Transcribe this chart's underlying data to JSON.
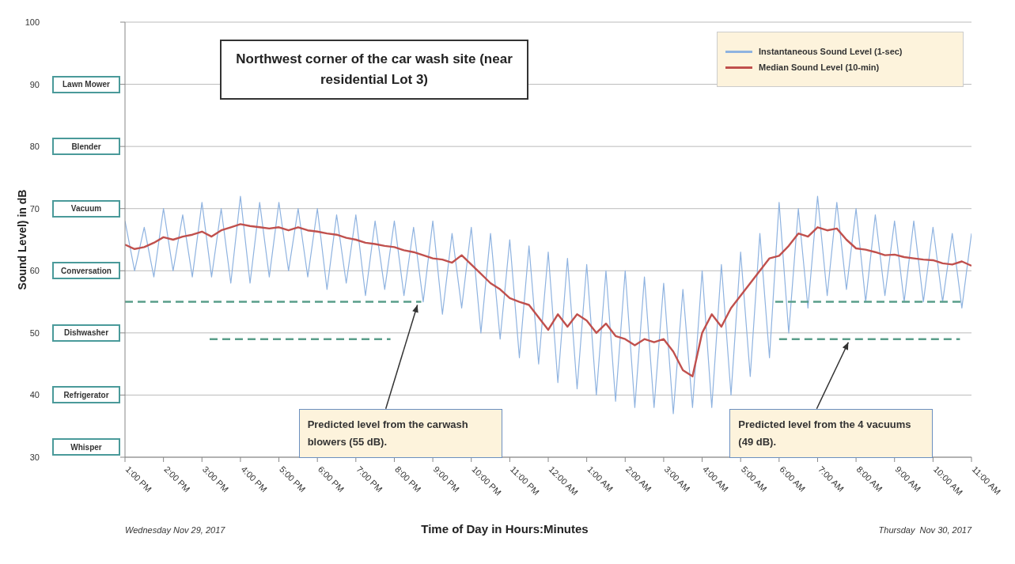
{
  "chart_data": {
    "type": "line",
    "title": "Northwest corner of the car wash site (near residential Lot 3)",
    "xlabel": "Time of Day in Hours:Minutes",
    "ylabel": "Sound Level) in dB",
    "xlim": [
      "2017-11-29T13:00",
      "2017-11-30T11:00"
    ],
    "xticks": [
      {
        "value": "2017-11-29T13:00",
        "label": "1:00 PM"
      },
      {
        "value": "2017-11-29T14:00",
        "label": "2:00 PM"
      },
      {
        "value": "2017-11-29T15:00",
        "label": "3:00 PM"
      },
      {
        "value": "2017-11-29T16:00",
        "label": "4:00 PM"
      },
      {
        "value": "2017-11-29T17:00",
        "label": "5:00 PM"
      },
      {
        "value": "2017-11-29T18:00",
        "label": "6:00 PM"
      },
      {
        "value": "2017-11-29T19:00",
        "label": "7:00 PM"
      },
      {
        "value": "2017-11-29T20:00",
        "label": "8:00 PM"
      },
      {
        "value": "2017-11-29T21:00",
        "label": "9:00 PM"
      },
      {
        "value": "2017-11-29T22:00",
        "label": "10:00 PM"
      },
      {
        "value": "2017-11-29T23:00",
        "label": "11:00 PM"
      },
      {
        "value": "2017-11-30T00:00",
        "label": "12:00 AM"
      },
      {
        "value": "2017-11-30T01:00",
        "label": "1:00 AM"
      },
      {
        "value": "2017-11-30T02:00",
        "label": "2:00 AM"
      },
      {
        "value": "2017-11-30T03:00",
        "label": "3:00 AM"
      },
      {
        "value": "2017-11-30T04:00",
        "label": "4:00 AM"
      },
      {
        "value": "2017-11-30T05:00",
        "label": "5:00 AM"
      },
      {
        "value": "2017-11-30T06:00",
        "label": "6:00 AM"
      },
      {
        "value": "2017-11-30T07:00",
        "label": "7:00 AM"
      },
      {
        "value": "2017-11-30T08:00",
        "label": "8:00 AM"
      },
      {
        "value": "2017-11-30T09:00",
        "label": "9:00 AM"
      },
      {
        "value": "2017-11-30T10:00",
        "label": "10:00 AM"
      },
      {
        "value": "2017-11-30T11:00",
        "label": "11:00 AM"
      }
    ],
    "ylim": [
      30,
      100
    ],
    "yticks": [
      30,
      40,
      50,
      60,
      70,
      80,
      90,
      100
    ],
    "grid": "y",
    "legend": "top right",
    "x": [
      "2017-11-29T13:00",
      "2017-11-29T13:15",
      "2017-11-29T13:30",
      "2017-11-29T13:45",
      "2017-11-29T14:00",
      "2017-11-29T14:15",
      "2017-11-29T14:30",
      "2017-11-29T14:45",
      "2017-11-29T15:00",
      "2017-11-29T15:15",
      "2017-11-29T15:30",
      "2017-11-29T15:45",
      "2017-11-29T16:00",
      "2017-11-29T16:15",
      "2017-11-29T16:30",
      "2017-11-29T16:45",
      "2017-11-29T17:00",
      "2017-11-29T17:15",
      "2017-11-29T17:30",
      "2017-11-29T17:45",
      "2017-11-29T18:00",
      "2017-11-29T18:15",
      "2017-11-29T18:30",
      "2017-11-29T18:45",
      "2017-11-29T19:00",
      "2017-11-29T19:15",
      "2017-11-29T19:30",
      "2017-11-29T19:45",
      "2017-11-29T20:00",
      "2017-11-29T20:15",
      "2017-11-29T20:30",
      "2017-11-29T20:45",
      "2017-11-29T21:00",
      "2017-11-29T21:15",
      "2017-11-29T21:30",
      "2017-11-29T21:45",
      "2017-11-29T22:00",
      "2017-11-29T22:15",
      "2017-11-29T22:30",
      "2017-11-29T22:45",
      "2017-11-29T23:00",
      "2017-11-29T23:15",
      "2017-11-29T23:30",
      "2017-11-29T23:45",
      "2017-11-30T00:00",
      "2017-11-30T00:15",
      "2017-11-30T00:30",
      "2017-11-30T00:45",
      "2017-11-30T01:00",
      "2017-11-30T01:15",
      "2017-11-30T01:30",
      "2017-11-30T01:45",
      "2017-11-30T02:00",
      "2017-11-30T02:15",
      "2017-11-30T02:30",
      "2017-11-30T02:45",
      "2017-11-30T03:00",
      "2017-11-30T03:15",
      "2017-11-30T03:30",
      "2017-11-30T03:45",
      "2017-11-30T04:00",
      "2017-11-30T04:15",
      "2017-11-30T04:30",
      "2017-11-30T04:45",
      "2017-11-30T05:00",
      "2017-11-30T05:15",
      "2017-11-30T05:30",
      "2017-11-30T05:45",
      "2017-11-30T06:00",
      "2017-11-30T06:15",
      "2017-11-30T06:30",
      "2017-11-30T06:45",
      "2017-11-30T07:00",
      "2017-11-30T07:15",
      "2017-11-30T07:30",
      "2017-11-30T07:45",
      "2017-11-30T08:00",
      "2017-11-30T08:15",
      "2017-11-30T08:30",
      "2017-11-30T08:45",
      "2017-11-30T09:00",
      "2017-11-30T09:15",
      "2017-11-30T09:30",
      "2017-11-30T09:45",
      "2017-11-30T10:00",
      "2017-11-30T10:15",
      "2017-11-30T10:30",
      "2017-11-30T10:45",
      "2017-11-30T11:00"
    ],
    "series": [
      {
        "name": "Instantaneous Sound Level (1-sec)",
        "color": "#8fb3e0",
        "values": [
          68,
          60,
          67,
          59,
          70,
          60,
          69,
          59,
          71,
          59,
          70,
          58,
          72,
          58,
          71,
          59,
          71,
          60,
          70,
          59,
          70,
          57,
          69,
          58,
          69,
          56,
          68,
          57,
          68,
          56,
          67,
          55,
          68,
          53,
          66,
          54,
          67,
          50,
          66,
          49,
          65,
          46,
          64,
          45,
          63,
          42,
          62,
          41,
          61,
          40,
          60,
          39,
          60,
          38,
          59,
          38,
          58,
          37,
          57,
          38,
          60,
          38,
          61,
          40,
          63,
          43,
          66,
          46,
          71,
          50,
          70,
          54,
          72,
          56,
          71,
          57,
          70,
          55,
          69,
          56,
          68,
          55,
          68,
          55,
          67,
          55,
          66,
          54,
          66
        ]
      },
      {
        "name": "Median Sound Level (10-min)",
        "color": "#c0504d",
        "values": [
          64.2,
          63.5,
          63.8,
          64.5,
          65.4,
          65,
          65.5,
          65.8,
          66.3,
          65.5,
          66.5,
          67,
          67.5,
          67.2,
          67,
          66.8,
          67,
          66.5,
          67,
          66.5,
          66.3,
          66,
          65.8,
          65.3,
          65,
          64.5,
          64.3,
          64,
          63.8,
          63.3,
          63,
          62.5,
          62,
          61.8,
          61.3,
          62.5,
          61,
          59.5,
          58,
          57,
          55.6,
          55,
          54.5,
          52.5,
          50.5,
          53,
          51,
          53,
          52,
          50,
          51.5,
          49.5,
          49,
          48,
          49,
          48.5,
          49,
          47,
          44,
          43,
          50,
          53,
          51,
          54,
          56,
          58,
          60,
          62,
          62.4,
          64,
          66,
          65.5,
          67,
          66.5,
          66.8,
          65,
          63.6,
          63.4,
          63,
          62.5,
          62.6,
          62.2,
          62,
          61.8,
          61.7,
          61.2,
          61,
          61.5,
          60.8
        ]
      },
      {
        "color": "#5a9e8a",
        "line_style": "dashed",
        "x": [
          "2017-11-29T13:00",
          "2017-11-29T20:42",
          "2017-11-30T01:00",
          "2017-11-30T05:54",
          "2017-11-30T10:45"
        ],
        "values": [
          55,
          55,
          null,
          55,
          55
        ]
      },
      {
        "color": "#5a9e8a",
        "line_style": "dashed",
        "x": [
          "2017-11-29T15:12",
          "2017-11-29T19:54",
          "2017-11-30T01:00",
          "2017-11-30T06:00",
          "2017-11-30T10:42"
        ],
        "values": [
          49,
          49,
          null,
          49,
          49
        ]
      }
    ],
    "annotations": [
      "Lawn Mower",
      "Blender",
      "Vacuum",
      "Conversation",
      "Dishwasher",
      "Refrigerator",
      "Whisper",
      {
        "text": "Predicted level from the carwash blowers (55 dB).",
        "x": "2017-11-29T20:36",
        "y": 55
      },
      {
        "text": "Predicted level from the 4 vacuums (49 dB).",
        "x": "2017-11-30T07:48",
        "y": 49
      },
      "Wednesday Nov 29, 2017",
      "Thursday  Nov 30, 2017"
    ]
  }
}
